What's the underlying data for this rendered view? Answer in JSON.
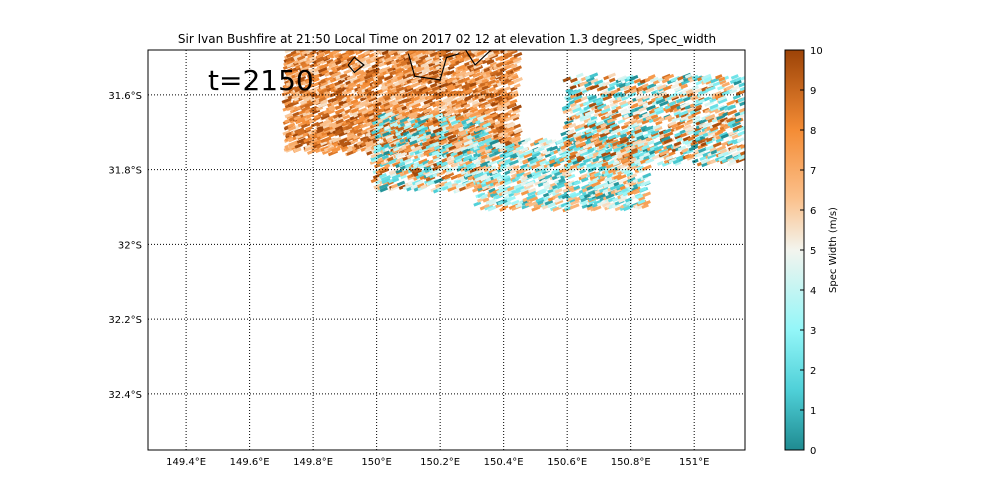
{
  "chart_data": {
    "type": "heatmap",
    "title": "Sir Ivan Bushfire at 21:50 Local Time on 2017 02 12 at elevation 1.3 degrees, Spec_width",
    "annotation": "t=2150",
    "xlim": [
      149.28,
      151.16
    ],
    "ylim": [
      -32.55,
      -31.48
    ],
    "grid": true,
    "x_ticks": [
      {
        "value": 149.4,
        "label": "149.4°E"
      },
      {
        "value": 149.6,
        "label": "149.6°E"
      },
      {
        "value": 149.8,
        "label": "149.8°E"
      },
      {
        "value": 150.0,
        "label": "150°E"
      },
      {
        "value": 150.2,
        "label": "150.2°E"
      },
      {
        "value": 150.4,
        "label": "150.4°E"
      },
      {
        "value": 150.6,
        "label": "150.6°E"
      },
      {
        "value": 150.8,
        "label": "150.8°E"
      },
      {
        "value": 151.0,
        "label": "151°E"
      }
    ],
    "y_ticks": [
      {
        "value": -31.6,
        "label": "31.6°S"
      },
      {
        "value": -31.8,
        "label": "31.8°S"
      },
      {
        "value": -32.0,
        "label": "32°S"
      },
      {
        "value": -32.2,
        "label": "32.2°S"
      },
      {
        "value": -32.4,
        "label": "32.4°S"
      }
    ],
    "colorbar": {
      "label": "Spec Width (m/s)",
      "min": 0,
      "max": 10,
      "ticks": [
        "0",
        "1",
        "2",
        "3",
        "4",
        "5",
        "6",
        "7",
        "8",
        "9",
        "10"
      ],
      "stops": [
        {
          "value": 0,
          "color": "#1f8b91"
        },
        {
          "value": 1.5,
          "color": "#4fd0d8"
        },
        {
          "value": 3,
          "color": "#93f6f8"
        },
        {
          "value": 5,
          "color": "#f3f4ee"
        },
        {
          "value": 6.3,
          "color": "#fbc08b"
        },
        {
          "value": 8,
          "color": "#f48c35"
        },
        {
          "value": 10,
          "color": "#9c4307"
        }
      ]
    },
    "field_regions": [
      {
        "lon": [
          149.72,
          150.45
        ],
        "lat": [
          -31.75,
          -31.48
        ],
        "value_range": [
          5.5,
          10
        ],
        "density": 0.85
      },
      {
        "lon": [
          150.0,
          150.35
        ],
        "lat": [
          -31.85,
          -31.65
        ],
        "value_range": [
          0,
          10
        ],
        "density": 0.75
      },
      {
        "lon": [
          150.32,
          150.85
        ],
        "lat": [
          -31.9,
          -31.72
        ],
        "value_range": [
          0,
          8
        ],
        "density": 0.7
      },
      {
        "lon": [
          150.6,
          151.16
        ],
        "lat": [
          -31.78,
          -31.55
        ],
        "value_range": [
          0,
          10
        ],
        "density": 0.6
      }
    ],
    "contour_lines": [
      [
        [
          149.91,
          -31.52
        ],
        [
          149.93,
          -31.5
        ],
        [
          149.96,
          -31.52
        ],
        [
          149.93,
          -31.54
        ],
        [
          149.91,
          -31.52
        ]
      ],
      [
        [
          150.1,
          -31.49
        ],
        [
          150.12,
          -31.55
        ],
        [
          150.2,
          -31.56
        ],
        [
          150.22,
          -31.5
        ],
        [
          150.26,
          -31.49
        ]
      ],
      [
        [
          150.28,
          -31.48
        ],
        [
          150.31,
          -31.52
        ],
        [
          150.36,
          -31.48
        ]
      ]
    ]
  }
}
